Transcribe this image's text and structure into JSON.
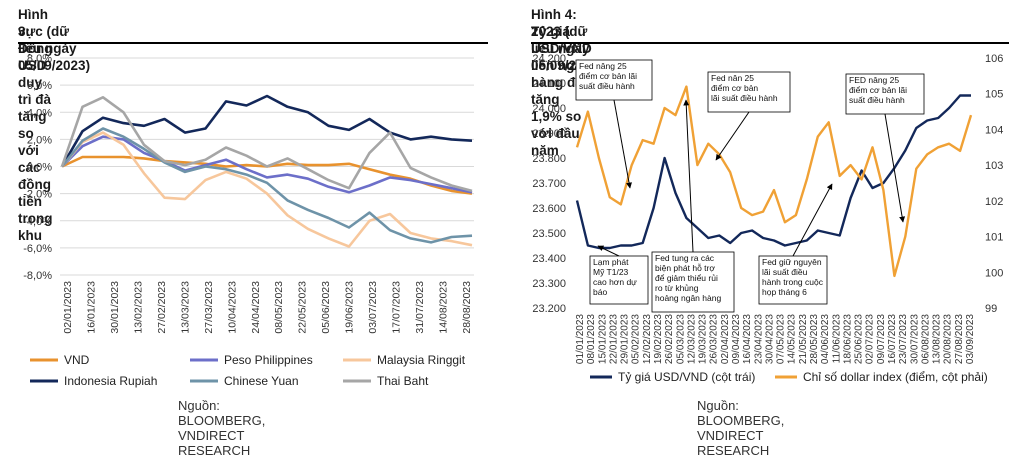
{
  "colors": {
    "vnd": "#e8922e",
    "php": "#6c6fc9",
    "myr": "#f7c79c",
    "idr": "#13285a",
    "cny": "#6e93a8",
    "thb": "#a6a6a6",
    "usdvnd": "#13285a",
    "dxy": "#f0a135"
  },
  "left": {
    "title_line1": "Hình 3: Đồng USD duy trì đà tăng so với các đồng tiền trong khu",
    "title_line2": "vực (dữ liệu ngày 05/09/2023)",
    "source": "Nguồn: BLOOMBERG, VNDIRECT RESEARCH"
  },
  "right": {
    "title_line1": "Hình 4: Tỷ giá USD/VND liên ngân hàng đã tăng 1,9% so với đầu năm",
    "title_line2": "2023  (dữ liệu ngày 05/09/2023)",
    "source": "Nguồn: BLOOMBERG, VNDIRECT RESEARCH"
  },
  "chart_data": [
    {
      "type": "line",
      "x_ticks": [
        "02/01/2023",
        "16/01/2023",
        "30/01/2023",
        "13/02/2023",
        "27/02/2023",
        "13/03/2023",
        "27/03/2023",
        "10/04/2023",
        "24/04/2023",
        "08/05/2023",
        "22/05/2023",
        "05/06/2023",
        "19/06/2023",
        "03/07/2023",
        "17/07/2023",
        "31/07/2023",
        "14/08/2023",
        "28/08/2023"
      ],
      "y_ticks": [
        "8,0%",
        "6,0%",
        "4,0%",
        "2,0%",
        "0,0%",
        "-2,0%",
        "-4,0%",
        "-6,0%",
        "-8,0%"
      ],
      "ylim": [
        -8,
        8
      ],
      "grid": true,
      "legend_position": "bottom",
      "series": [
        {
          "name": "VND",
          "color_key": "vnd",
          "values": [
            0,
            0.7,
            0.7,
            0.7,
            0.6,
            0.4,
            0.3,
            0.2,
            0.0,
            0.1,
            0.0,
            0.2,
            0.1,
            0.1,
            0.2,
            -0.2,
            -0.6,
            -0.9,
            -1.4,
            -1.8,
            -2.0
          ]
        },
        {
          "name": "Peso Philippines",
          "color_key": "php",
          "values": [
            0,
            1.5,
            2.2,
            2.0,
            1.0,
            0.4,
            -0.3,
            0.1,
            0.5,
            -0.2,
            -0.8,
            -0.6,
            -0.9,
            -1.5,
            -1.9,
            -1.4,
            -0.8,
            -1.0,
            -1.3,
            -1.6,
            -1.9
          ]
        },
        {
          "name": "Malaysia Ringgit",
          "color_key": "myr",
          "values": [
            0,
            1.8,
            2.5,
            1.6,
            -0.5,
            -2.3,
            -2.4,
            -1.0,
            -0.4,
            -0.9,
            -2.0,
            -3.6,
            -4.6,
            -5.3,
            -5.9,
            -4.0,
            -3.5,
            -4.9,
            -5.3,
            -5.5,
            -5.8
          ]
        },
        {
          "name": "Indonesia Rupiah",
          "color_key": "idr",
          "values": [
            0,
            2.6,
            3.6,
            3.2,
            3.0,
            3.5,
            2.5,
            2.8,
            4.8,
            4.5,
            5.2,
            4.4,
            4.0,
            3.0,
            2.7,
            3.5,
            2.5,
            2.0,
            2.2,
            2.0,
            1.9
          ]
        },
        {
          "name": "Chinese Yuan",
          "color_key": "cny",
          "values": [
            0,
            1.9,
            2.8,
            2.2,
            1.3,
            0.3,
            -0.4,
            0.0,
            -0.2,
            -0.6,
            -1.2,
            -2.5,
            -3.2,
            -3.8,
            -4.5,
            -3.4,
            -4.7,
            -5.3,
            -5.6,
            -5.2,
            -5.1
          ]
        },
        {
          "name": "Thai Baht",
          "color_key": "thb",
          "values": [
            0,
            4.4,
            5.1,
            4.0,
            1.6,
            0.4,
            0.1,
            0.5,
            1.4,
            0.8,
            0.0,
            0.6,
            -0.2,
            -1.0,
            -1.6,
            1.0,
            2.5,
            -0.1,
            -0.8,
            -1.4,
            -1.8
          ]
        }
      ]
    },
    {
      "type": "line",
      "x_ticks": [
        "01/01/2023",
        "08/01/2023",
        "15/01/2023",
        "22/01/2023",
        "29/01/2023",
        "05/02/2023",
        "12/02/2023",
        "19/02/2023",
        "26/02/2023",
        "05/03/2023",
        "12/03/2023",
        "19/03/2023",
        "26/03/2023",
        "02/04/2023",
        "09/04/2023",
        "16/04/2023",
        "23/04/2023",
        "30/04/2023",
        "07/05/2023",
        "14/05/2023",
        "21/05/2023",
        "28/05/2023",
        "04/06/2023",
        "11/06/2023",
        "18/06/2023",
        "25/06/2023",
        "02/07/2023",
        "09/07/2023",
        "16/07/2023",
        "23/07/2023",
        "30/07/2023",
        "06/08/2023",
        "13/08/2023",
        "20/08/2023",
        "27/08/2023",
        "03/09/2023"
      ],
      "y_left_ticks": [
        "24.200",
        "24.100",
        "24.000",
        "23.900",
        "23.800",
        "23.700",
        "23.600",
        "23.500",
        "23.400",
        "23.300",
        "23.200"
      ],
      "y_right_ticks": [
        "106",
        "105",
        "104",
        "103",
        "102",
        "101",
        "100",
        "99"
      ],
      "ylim_left": [
        23200,
        24200
      ],
      "ylim_right": [
        99,
        106
      ],
      "grid": false,
      "legend_position": "bottom",
      "series": [
        {
          "name": "Tỷ giá USD/VND (cột trái)",
          "axis": "left",
          "color_key": "usdvnd",
          "values": [
            23630,
            23450,
            23440,
            23440,
            23450,
            23450,
            23460,
            23600,
            23800,
            23660,
            23560,
            23520,
            23480,
            23490,
            23460,
            23500,
            23510,
            23480,
            23470,
            23450,
            23460,
            23470,
            23510,
            23500,
            23490,
            23640,
            23750,
            23680,
            23700,
            23760,
            23830,
            23920,
            23950,
            23960,
            24000,
            24050,
            24050
          ]
        },
        {
          "name": "Chỉ số dollar index (điểm, cột phải)",
          "axis": "right",
          "color_key": "dxy",
          "values": [
            103.5,
            104.5,
            103.2,
            102.1,
            101.9,
            103.0,
            103.7,
            103.6,
            104.6,
            104.4,
            105.2,
            103.0,
            103.6,
            103.3,
            102.8,
            101.8,
            101.6,
            101.7,
            102.3,
            101.4,
            101.6,
            102.6,
            103.8,
            104.2,
            102.7,
            103.0,
            102.6,
            103.5,
            102.3,
            99.9,
            101.0,
            102.9,
            103.3,
            103.5,
            103.6,
            103.4,
            104.4
          ]
        }
      ],
      "annotations": [
        "Fed nâng 25\nđiểm cơ bản lãi\nsuất điều hành",
        "Fed nân 25\nđiểm cơ bản\nlãi suất điều hành",
        "FED nâng 25\nđiểm cơ bản lãi\nsuất điều hành",
        "Lạm phát\nMỹ T1/23\ncao hơn dự\nbáo",
        "Fed tung ra các\nbiện phát hỗ trợ\nđể giảm thiểu rủi\nro từ khủng\nhoảng ngân hàng",
        "Fed giữ nguyên\nlãi suất điều\nhành trong cuộc\nhọp tháng 6"
      ]
    }
  ]
}
